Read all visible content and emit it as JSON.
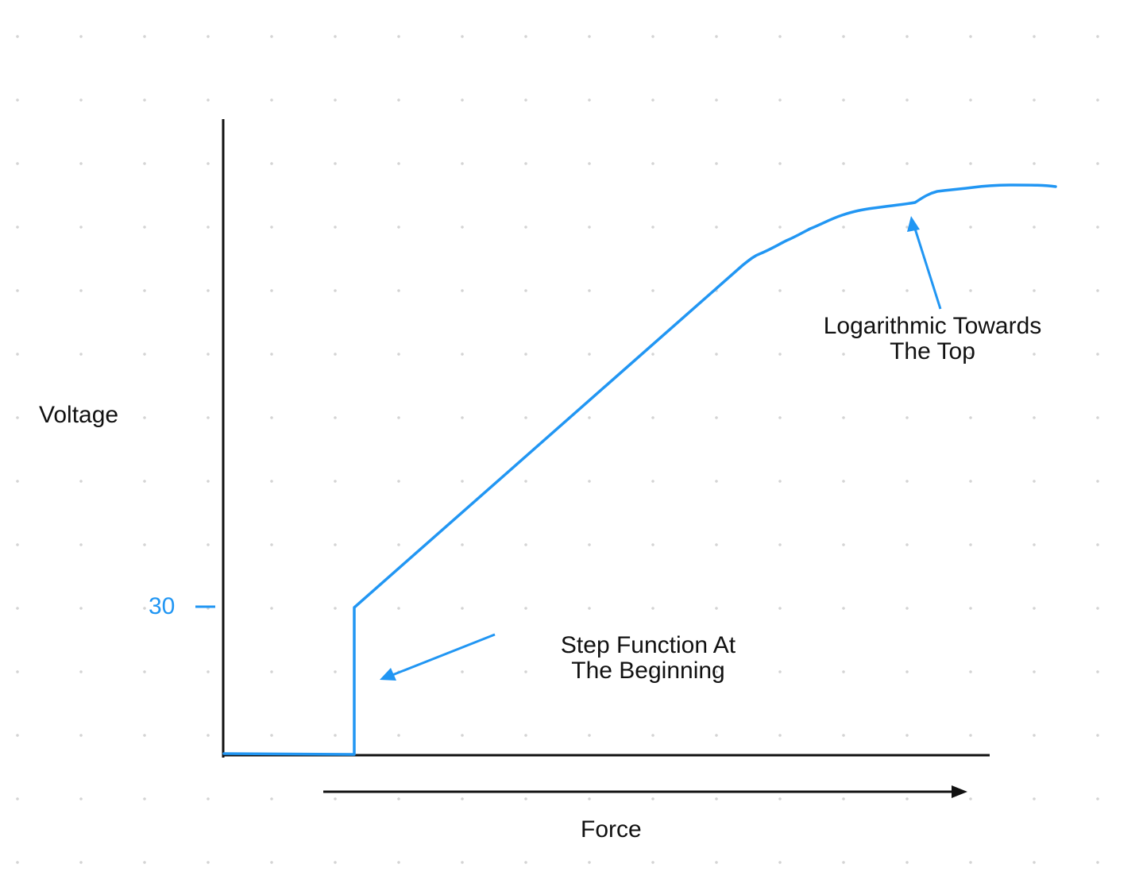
{
  "diagram": {
    "y_axis_label": "Voltage",
    "x_axis_label": "Force",
    "tick_label": "30",
    "annotation_step": {
      "line1": "Step Function At",
      "line2": "The Beginning"
    },
    "annotation_log": {
      "line1": "Logarithmic Towards",
      "line2": "The Top"
    },
    "colors": {
      "curve": "#2196f3",
      "axis": "#111111",
      "text": "#111111",
      "tick_text": "#2196f3",
      "grid_dot": "#d4d4d4"
    }
  }
}
